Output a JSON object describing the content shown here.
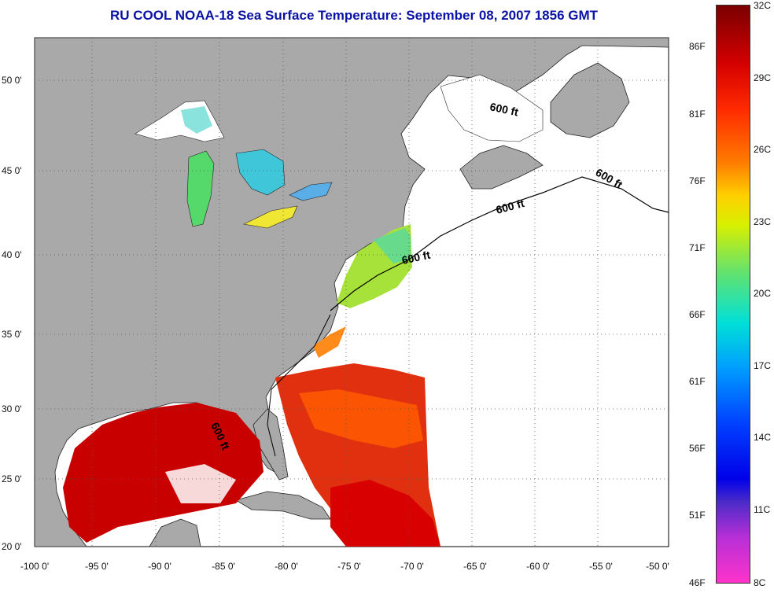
{
  "title": "RU COOL  NOAA-18  Sea Surface Temperature:  September 08, 2007 1856 GMT",
  "axes": {
    "x_ticks": [
      "-100 0'",
      "-95 0'",
      "-90 0'",
      "-85 0'",
      "-80 0'",
      "-75 0'",
      "-70 0'",
      "-65 0'",
      "-60 0'",
      "-55 0'",
      "-50 0'"
    ],
    "y_ticks": [
      "50 0'",
      "45 0'",
      "40 0'",
      "35 0'",
      "30 0'",
      "25 0'",
      "20 0'"
    ]
  },
  "contour_label": "600 ft",
  "colorbar": {
    "celsius": [
      "32C",
      "29C",
      "26C",
      "23C",
      "20C",
      "17C",
      "14C",
      "11C",
      "8C"
    ],
    "fahrenheit": [
      "86F",
      "81F",
      "76F",
      "71F",
      "66F",
      "61F",
      "56F",
      "51F",
      "46F"
    ]
  },
  "colors": {
    "title": "#0b13a6",
    "land": "#a9a9a9",
    "ocean_nodata": "#ffffff",
    "hot": "#c80000",
    "warm": "#ff5a00"
  }
}
